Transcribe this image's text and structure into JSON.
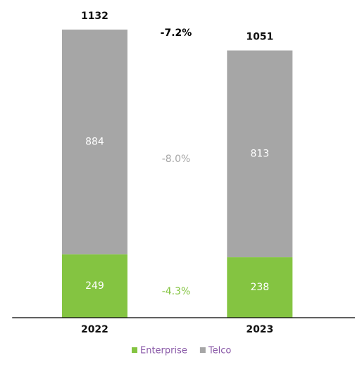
{
  "chart_data": {
    "type": "stacked_bar",
    "categories": [
      "2022",
      "2023"
    ],
    "series": [
      {
        "name": "Enterprise",
        "color": "#84c441",
        "values": [
          249,
          238
        ]
      },
      {
        "name": "Telco",
        "color": "#a6a6a6",
        "values": [
          884,
          813
        ]
      }
    ],
    "totals": [
      1132,
      1051
    ],
    "ylim": [
      0,
      1133
    ],
    "annotations": [
      {
        "text": "-7.2%",
        "color": "#000000"
      },
      {
        "text": "-8.0%",
        "color": "#a6a6a6"
      },
      {
        "text": "-4.3%",
        "color": "#84c441"
      }
    ]
  }
}
